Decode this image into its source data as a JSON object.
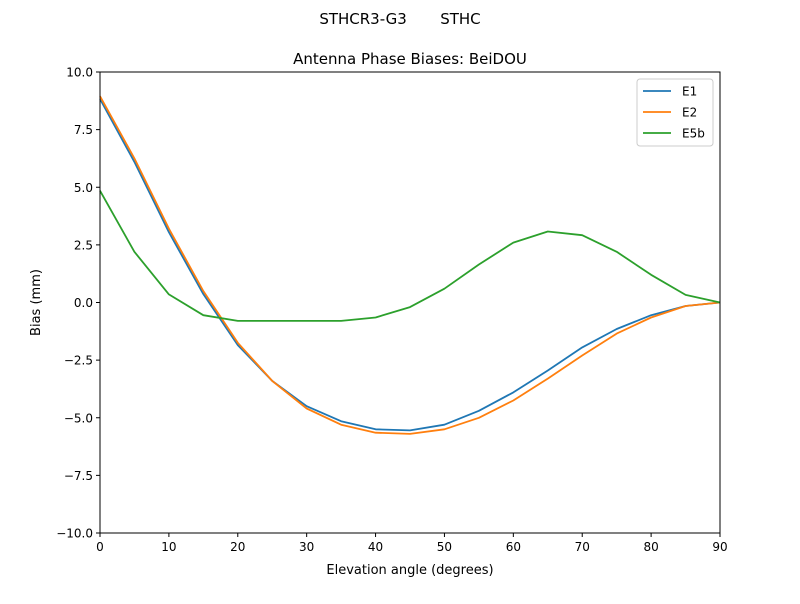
{
  "chart_data": {
    "type": "line",
    "suptitle": "STHCR3-G3       STHC",
    "title": "Antenna Phase Biases: BeiDOU",
    "xlabel": "Elevation angle (degrees)",
    "ylabel": "Bias (mm)",
    "xlim": [
      0,
      90
    ],
    "ylim": [
      -10,
      10
    ],
    "xticks": [
      0,
      10,
      20,
      30,
      40,
      50,
      60,
      70,
      80,
      90
    ],
    "xtick_labels": [
      "0",
      "10",
      "20",
      "30",
      "40",
      "50",
      "60",
      "70",
      "80",
      "90"
    ],
    "yticks": [
      -10,
      -7.5,
      -5,
      -2.5,
      0,
      2.5,
      5,
      7.5,
      10
    ],
    "ytick_labels": [
      "−10.0",
      "−7.5",
      "−5.0",
      "−2.5",
      "0.0",
      "2.5",
      "5.0",
      "7.5",
      "10.0"
    ],
    "grid": false,
    "legend_position": "top-right",
    "x": [
      0,
      5,
      10,
      15,
      20,
      25,
      30,
      35,
      40,
      45,
      50,
      55,
      60,
      65,
      70,
      75,
      80,
      85,
      90
    ],
    "series": [
      {
        "name": "E1",
        "color": "#1f77b4",
        "values": [
          8.83,
          6.1,
          3.05,
          0.37,
          -1.85,
          -3.4,
          -4.5,
          -5.15,
          -5.5,
          -5.55,
          -5.3,
          -4.7,
          -3.9,
          -2.95,
          -1.95,
          -1.15,
          -0.55,
          -0.15,
          0.0
        ]
      },
      {
        "name": "E2",
        "color": "#ff7f0e",
        "values": [
          8.95,
          6.25,
          3.2,
          0.5,
          -1.75,
          -3.4,
          -4.6,
          -5.3,
          -5.65,
          -5.7,
          -5.5,
          -5.0,
          -4.25,
          -3.3,
          -2.3,
          -1.35,
          -0.65,
          -0.15,
          0.0
        ]
      },
      {
        "name": "E5b",
        "color": "#2ca02c",
        "values": [
          4.85,
          2.2,
          0.35,
          -0.55,
          -0.8,
          -0.8,
          -0.8,
          -0.8,
          -0.65,
          -0.2,
          0.6,
          1.65,
          2.6,
          3.08,
          2.92,
          2.2,
          1.2,
          0.33,
          0.0
        ]
      }
    ]
  }
}
